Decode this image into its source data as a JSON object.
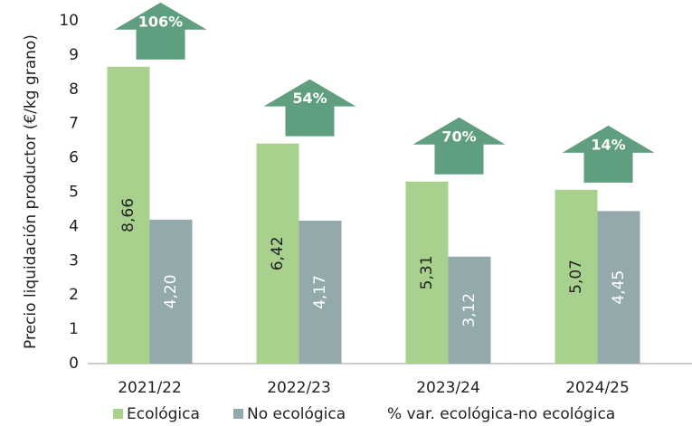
{
  "chart_data": {
    "type": "bar",
    "categories": [
      "2021/22",
      "2022/23",
      "2023/24",
      "2024/25"
    ],
    "y_label": "Precio liquidación productor (€/kg grano)",
    "ylim": [
      0,
      10
    ],
    "yticks": [
      0,
      1,
      2,
      3,
      4,
      5,
      6,
      7,
      8,
      9,
      10
    ],
    "grid": false,
    "legend": "bottom",
    "series": [
      {
        "name": "Ecológica",
        "color": "#a9d18e",
        "values": [
          8.66,
          6.42,
          5.31,
          5.07
        ],
        "value_labels": [
          "8,66",
          "6,42",
          "5,31",
          "5,07"
        ]
      },
      {
        "name": "No ecológica",
        "color": "#94a9ab",
        "values": [
          4.2,
          4.17,
          3.12,
          4.45
        ],
        "value_labels": [
          "4,20",
          "4,17",
          "3,12",
          "4,45"
        ]
      },
      {
        "name": "% var. ecológica-no ecológica",
        "color": "#5f9e7e",
        "axis": "none",
        "values": [
          106,
          54,
          70,
          14
        ],
        "value_labels": [
          "106%",
          "54%",
          "70%",
          "14%"
        ]
      }
    ]
  }
}
